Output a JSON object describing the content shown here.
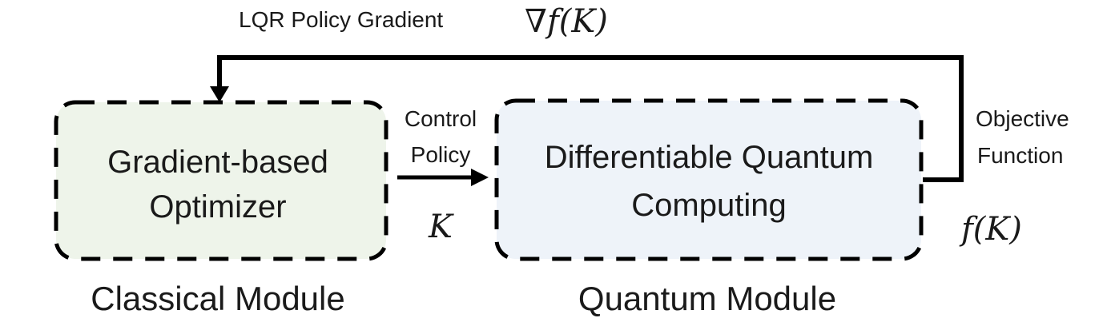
{
  "feedback": {
    "label": "LQR Policy Gradient",
    "nabla": "∇",
    "math": "f(K)"
  },
  "classical_box": {
    "line1": "Gradient-based",
    "line2": "Optimizer",
    "fill": "#eef4ea"
  },
  "quantum_box": {
    "line1": "Differentiable Quantum",
    "line2": "Computing",
    "fill": "#eef3f9"
  },
  "control_policy": {
    "line1": "Control",
    "line2": "Policy",
    "math": "K"
  },
  "objective": {
    "line1": "Objective",
    "line2": "Function",
    "math": "f(K)"
  },
  "modules": {
    "classical": "Classical Module",
    "quantum": "Quantum Module"
  },
  "colors": {
    "stroke": "#000000",
    "text": "#1a1a1a"
  }
}
